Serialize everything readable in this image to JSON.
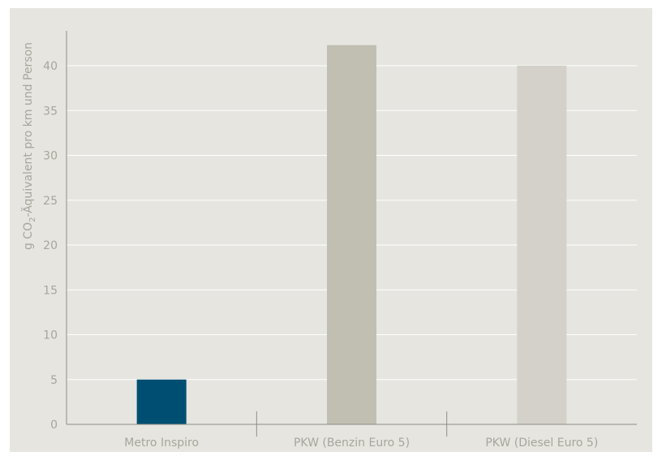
{
  "chart_data": {
    "type": "bar",
    "categories": [
      "Metro Inspiro",
      "PKW (Benzin Euro 5)",
      "PKW (Diesel Euro 5)"
    ],
    "values": [
      5,
      42.3,
      40
    ],
    "colors": [
      "#004f73",
      "#c0bfb2",
      "#d3d1c9"
    ],
    "title": "",
    "xlabel": "",
    "ylabel": {
      "prefix": "g CO",
      "subscript": "2",
      "suffix": "-Äquivalent pro km und Person"
    },
    "ylim": [
      0,
      43
    ],
    "yticks": [
      "0",
      "5",
      "10",
      "15",
      "20",
      "25",
      "30",
      "35",
      "40"
    ],
    "grid": true,
    "background": "#e6e5df"
  }
}
